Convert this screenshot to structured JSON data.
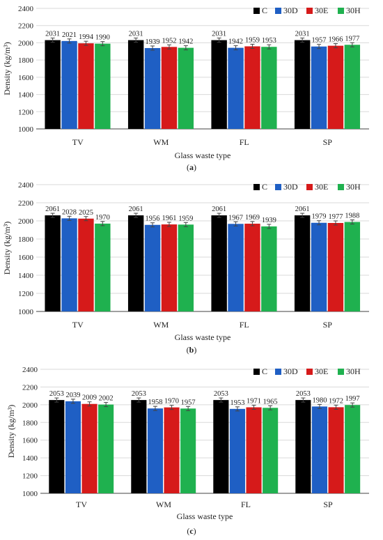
{
  "colors": {
    "C": "#000000",
    "30D": "#1f5fc4",
    "30E": "#d61a1a",
    "30H": "#1fb14f",
    "grid": "#d9d9d9",
    "axis": "#404040"
  },
  "chart_data": [
    {
      "type": "bar",
      "panel_label": "(a)",
      "xlabel": "Glass waste type",
      "ylabel": "Density (kg/m³)",
      "ylim": [
        1000,
        2400
      ],
      "yticks": [
        1000,
        1200,
        1400,
        1600,
        1800,
        2000,
        2200,
        2400
      ],
      "categories": [
        "TV",
        "WM",
        "FL",
        "SP"
      ],
      "legend_position": "top-right",
      "grid": true,
      "series": [
        {
          "name": "C",
          "values": [
            2031,
            2031,
            2031,
            2031
          ]
        },
        {
          "name": "30D",
          "values": [
            2021,
            1939,
            1942,
            1957
          ]
        },
        {
          "name": "30E",
          "values": [
            1994,
            1952,
            1959,
            1966
          ]
        },
        {
          "name": "30H",
          "values": [
            1990,
            1942,
            1953,
            1977
          ]
        }
      ]
    },
    {
      "type": "bar",
      "panel_label": "(b)",
      "xlabel": "Glass waste type",
      "ylabel": "Density (kg/m³)",
      "ylim": [
        1000,
        2400
      ],
      "yticks": [
        1000,
        1200,
        1400,
        1600,
        1800,
        2000,
        2200,
        2400
      ],
      "categories": [
        "TV",
        "WM",
        "FL",
        "SP"
      ],
      "legend_position": "top-right",
      "grid": true,
      "series": [
        {
          "name": "C",
          "values": [
            2061,
            2061,
            2061,
            2061
          ]
        },
        {
          "name": "30D",
          "values": [
            2028,
            1956,
            1967,
            1979
          ]
        },
        {
          "name": "30E",
          "values": [
            2025,
            1961,
            1969,
            1977
          ]
        },
        {
          "name": "30H",
          "values": [
            1970,
            1959,
            1939,
            1988
          ]
        }
      ]
    },
    {
      "type": "bar",
      "panel_label": "(c)",
      "xlabel": "Glass waste type",
      "ylabel": "Density (kg/m³)",
      "ylim": [
        1000,
        2400
      ],
      "yticks": [
        1000,
        1200,
        1400,
        1600,
        1800,
        2000,
        2200,
        2400
      ],
      "categories": [
        "TV",
        "WM",
        "FL",
        "SP"
      ],
      "legend_position": "top-right",
      "grid": true,
      "series": [
        {
          "name": "C",
          "values": [
            2053,
            2053,
            2053,
            2053
          ]
        },
        {
          "name": "30D",
          "values": [
            2039,
            1958,
            1953,
            1980
          ]
        },
        {
          "name": "30E",
          "values": [
            2009,
            1970,
            1971,
            1972
          ]
        },
        {
          "name": "30H",
          "values": [
            2002,
            1957,
            1965,
            1997
          ]
        }
      ]
    }
  ]
}
